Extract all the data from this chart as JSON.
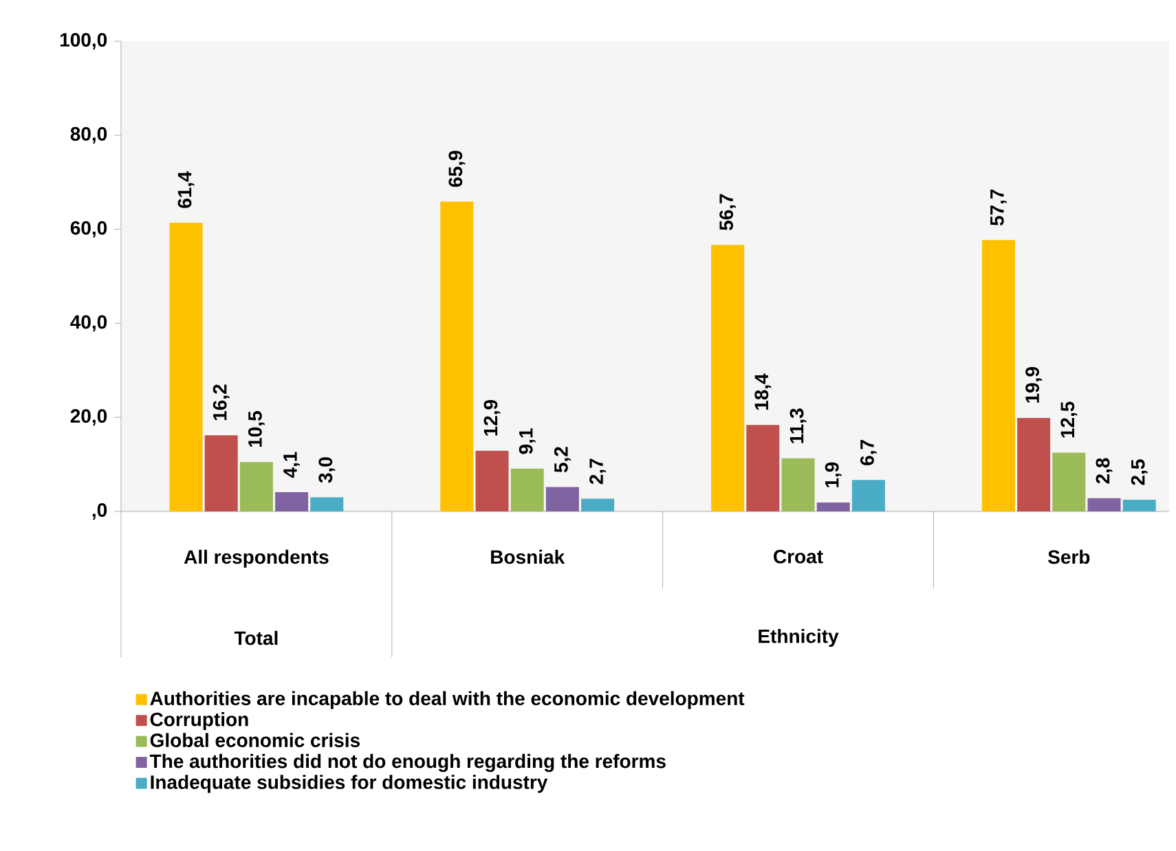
{
  "chart_data": {
    "type": "bar",
    "categories": [
      "All respondents",
      "Bosniak",
      "Croat",
      "Serb"
    ],
    "series": [
      {
        "name": "Authorities are incapable to deal with the economic development",
        "color": "#ffc000",
        "values": [
          61.4,
          65.9,
          56.7,
          57.7
        ],
        "value_labels": [
          "61,4",
          "65,9",
          "56,7",
          "57,7"
        ]
      },
      {
        "name": "Corruption",
        "color": "#c0504d",
        "values": [
          16.2,
          12.9,
          18.4,
          19.9
        ],
        "value_labels": [
          "16,2",
          "12,9",
          "18,4",
          "19,9"
        ]
      },
      {
        "name": "Global economic crisis",
        "color": "#9bbb59",
        "values": [
          10.5,
          9.1,
          11.3,
          12.5
        ],
        "value_labels": [
          "10,5",
          "9,1",
          "11,3",
          "12,5"
        ]
      },
      {
        "name": "The authorities did not do enough regarding the reforms",
        "color": "#8064a2",
        "values": [
          4.1,
          5.2,
          1.9,
          2.8
        ],
        "value_labels": [
          "4,1",
          "5,2",
          "1,9",
          "2,8"
        ]
      },
      {
        "name": "Inadequate subsidies for domestic industry",
        "color": "#4bacc6",
        "values": [
          3.0,
          2.7,
          6.7,
          2.5
        ],
        "value_labels": [
          "3,0",
          "2,7",
          "6,7",
          "2,5"
        ]
      }
    ],
    "ylim": [
      0,
      100
    ],
    "yticks": [
      {
        "value": 0,
        "label": ",0"
      },
      {
        "value": 20,
        "label": "20,0"
      },
      {
        "value": 40,
        "label": "40,0"
      },
      {
        "value": 60,
        "label": "60,0"
      },
      {
        "value": 80,
        "label": "80,0"
      },
      {
        "value": 100,
        "label": "100,0"
      }
    ],
    "annotations": [
      "Total",
      "Ethnicity"
    ],
    "grid": false,
    "legend": "bottom"
  }
}
